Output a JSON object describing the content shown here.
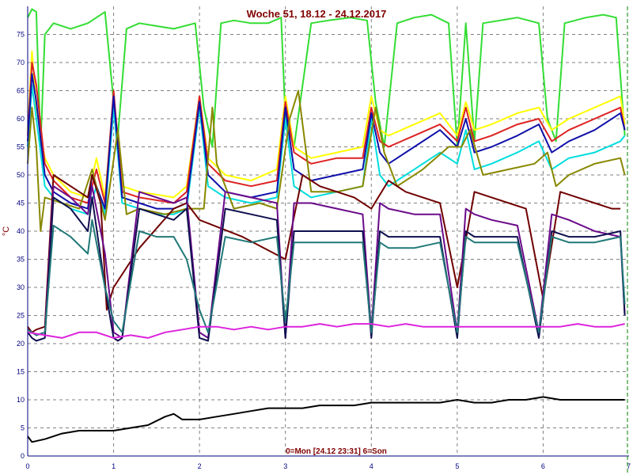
{
  "chart_data": {
    "type": "line",
    "title": "Woche 51, 18.12 - 24.12.2017",
    "footer": "0=Mon [24.12 23:31] 6=Son",
    "ylabel": "°C",
    "xlabel": "",
    "xlim": [
      0,
      7
    ],
    "ylim": [
      0,
      80
    ],
    "grid": true,
    "xticks": [
      0,
      1,
      2,
      3,
      4,
      5,
      6,
      7
    ],
    "yticks": [
      0,
      5,
      10,
      15,
      20,
      25,
      30,
      35,
      40,
      45,
      50,
      55,
      60,
      65,
      70,
      75
    ],
    "colors": {
      "background": "#ffffff",
      "grid": "#808080",
      "axis": "#000080",
      "title": "#800000"
    },
    "series": [
      {
        "color": "#33dd33",
        "x": [
          0,
          0.05,
          0.1,
          0.15,
          0.2,
          0.3,
          0.5,
          0.7,
          0.9,
          1.0,
          1.05,
          1.15,
          1.3,
          1.5,
          1.7,
          1.95,
          2.05,
          2.15,
          2.25,
          2.4,
          2.6,
          2.8,
          2.95,
          3.0,
          3.1,
          3.3,
          3.5,
          3.75,
          3.95,
          4.05,
          4.15,
          4.3,
          4.5,
          4.7,
          4.9,
          5.0,
          5.1,
          5.2,
          5.3,
          5.5,
          5.7,
          5.95,
          6.05,
          6.15,
          6.25,
          6.5,
          6.7,
          6.85,
          6.95
        ],
        "y": [
          78,
          79.5,
          79,
          55,
          75,
          77,
          76,
          77,
          79,
          63,
          57,
          76,
          77,
          76.5,
          76,
          77,
          62,
          55,
          77,
          77.5,
          77,
          77,
          78,
          60,
          55,
          77,
          77.5,
          78,
          77.5,
          63,
          55,
          77,
          78,
          78.5,
          77,
          55,
          77,
          56,
          77,
          77.5,
          78,
          77,
          60,
          56,
          77,
          78,
          78.5,
          78,
          57
        ]
      },
      {
        "color": "#ffff00",
        "x": [
          0,
          0.05,
          0.1,
          0.2,
          0.3,
          0.5,
          0.7,
          0.8,
          0.9,
          1.0,
          1.1,
          1.3,
          1.5,
          1.7,
          1.85,
          2.0,
          2.1,
          2.3,
          2.6,
          2.9,
          3.0,
          3.1,
          3.3,
          3.6,
          3.9,
          4.0,
          4.1,
          4.2,
          4.5,
          4.8,
          5.0,
          5.1,
          5.2,
          5.4,
          5.7,
          5.95,
          6.1,
          6.3,
          6.6,
          6.9,
          6.95
        ],
        "y": [
          58,
          72,
          62,
          53,
          50,
          47,
          46,
          53,
          46,
          64,
          48,
          47,
          46.5,
          46,
          48,
          64,
          53,
          50,
          49,
          51,
          64,
          55,
          53,
          54,
          55,
          64,
          58,
          57,
          59,
          61,
          57,
          63,
          58,
          59,
          61,
          62,
          58,
          60,
          62,
          64,
          59
        ]
      },
      {
        "color": "#dd2222",
        "x": [
          0,
          0.05,
          0.1,
          0.2,
          0.3,
          0.5,
          0.7,
          0.8,
          0.9,
          1.0,
          1.1,
          1.3,
          1.5,
          1.7,
          1.85,
          2.0,
          2.1,
          2.3,
          2.6,
          2.9,
          3.0,
          3.1,
          3.3,
          3.6,
          3.9,
          4.0,
          4.1,
          4.2,
          4.5,
          4.8,
          5.0,
          5.1,
          5.2,
          5.4,
          5.7,
          5.95,
          6.1,
          6.3,
          6.6,
          6.9,
          6.95
        ],
        "y": [
          57,
          70,
          66,
          52,
          49,
          46,
          45,
          51,
          45,
          65,
          47,
          46,
          45.5,
          45,
          47,
          64,
          52,
          49,
          48,
          49,
          63,
          54,
          52,
          53,
          53,
          62,
          56,
          55,
          57,
          59,
          56,
          62,
          56,
          57,
          59,
          60,
          56,
          58,
          60,
          62,
          58
        ]
      },
      {
        "color": "#00dddd",
        "x": [
          0,
          0.05,
          0.1,
          0.2,
          0.3,
          0.5,
          0.7,
          0.8,
          0.9,
          1.0,
          1.1,
          1.3,
          1.5,
          1.7,
          1.85,
          2.0,
          2.1,
          2.3,
          2.6,
          2.9,
          3.0,
          3.1,
          3.3,
          3.6,
          3.9,
          4.0,
          4.1,
          4.2,
          4.5,
          4.8,
          5.0,
          5.1,
          5.2,
          5.4,
          5.7,
          5.95,
          6.1,
          6.3,
          6.6,
          6.9,
          6.95
        ],
        "y": [
          55,
          66,
          60,
          48,
          46,
          44,
          43,
          48,
          43,
          62,
          45,
          44,
          43,
          43,
          44,
          62,
          48,
          46,
          45,
          46,
          60,
          48,
          46,
          47,
          48,
          60,
          50,
          48,
          51,
          54,
          52,
          58,
          51,
          52,
          54,
          56,
          51,
          53,
          54,
          56,
          57
        ]
      },
      {
        "color": "#1010aa",
        "x": [
          0,
          0.05,
          0.1,
          0.2,
          0.3,
          0.5,
          0.7,
          0.75,
          0.9,
          1.0,
          1.1,
          1.3,
          1.5,
          1.7,
          1.85,
          2.0,
          2.1,
          2.3,
          2.6,
          2.9,
          3.0,
          3.1,
          3.3,
          3.6,
          3.9,
          4.0,
          4.1,
          4.2,
          4.5,
          4.8,
          5.0,
          5.1,
          5.2,
          5.4,
          5.7,
          5.95,
          6.1,
          6.3,
          6.6,
          6.9,
          6.95
        ],
        "y": [
          56,
          68,
          63,
          50,
          47,
          45,
          44,
          50,
          44,
          64,
          46,
          45,
          44,
          44,
          45,
          63,
          50,
          47,
          46,
          47,
          62,
          51,
          49,
          50,
          51,
          61,
          54,
          52,
          55,
          58,
          55,
          60,
          54,
          55,
          57,
          59,
          54,
          56,
          58,
          61,
          58
        ]
      },
      {
        "color": "#888800",
        "x": [
          0,
          0.05,
          0.1,
          0.15,
          0.2,
          0.4,
          0.6,
          0.75,
          0.9,
          1.05,
          1.15,
          1.3,
          1.6,
          1.85,
          2.05,
          2.15,
          2.2,
          2.4,
          2.7,
          2.9,
          3.05,
          3.15,
          3.3,
          3.6,
          3.9,
          4.05,
          4.15,
          4.3,
          4.6,
          4.9,
          5.05,
          5.15,
          5.3,
          5.6,
          5.9,
          6.05,
          6.15,
          6.3,
          6.6,
          6.9,
          6.95
        ],
        "y": [
          52,
          62,
          55,
          40,
          46,
          45,
          44,
          51,
          42,
          58,
          43,
          44,
          43,
          44,
          44,
          62,
          52,
          44,
          45,
          44,
          60,
          65,
          47,
          47,
          48,
          62,
          54,
          48,
          51,
          55,
          55,
          58,
          50,
          51,
          52,
          54,
          48,
          50,
          52,
          53,
          50
        ]
      },
      {
        "color": "#700000",
        "x": [
          0,
          0.05,
          0.1,
          0.2,
          0.3,
          0.5,
          0.7,
          0.75,
          0.85,
          0.92,
          1.0,
          1.3,
          1.7,
          1.85,
          2.0,
          2.5,
          3.0,
          3.2,
          3.4,
          3.6,
          3.8,
          4.0,
          4.2,
          4.4,
          4.6,
          4.8,
          5.0,
          5.2,
          5.4,
          5.6,
          5.8,
          6.0,
          6.2,
          6.4,
          6.6,
          6.8,
          6.9
        ],
        "y": [
          23,
          22,
          22.5,
          23,
          50,
          48,
          46,
          50,
          45,
          26,
          30,
          37,
          44,
          45,
          42,
          39,
          35,
          50,
          48,
          47,
          46,
          44,
          49,
          47,
          46,
          45,
          30,
          47,
          46,
          45,
          44,
          28,
          47,
          46,
          45,
          44,
          44
        ]
      },
      {
        "color": "#6a0a8a",
        "x": [
          0,
          0.05,
          0.1,
          0.2,
          0.3,
          0.5,
          0.7,
          0.75,
          0.9,
          1.0,
          1.1,
          1.3,
          1.5,
          1.7,
          1.85,
          2.0,
          2.1,
          2.3,
          2.6,
          2.9,
          3.0,
          3.1,
          3.3,
          3.6,
          3.9,
          4.0,
          4.1,
          4.2,
          4.5,
          4.8,
          5.0,
          5.1,
          5.2,
          5.4,
          5.7,
          5.95,
          6.1,
          6.3,
          6.6,
          6.9,
          6.95
        ],
        "y": [
          22.5,
          22,
          21.5,
          22,
          48,
          46,
          43,
          48,
          36,
          22,
          21,
          47,
          46,
          45,
          46,
          22,
          21,
          47,
          46,
          45,
          21,
          45,
          45,
          44,
          43,
          22,
          45,
          44,
          43,
          43,
          22,
          44,
          43,
          42,
          41,
          22,
          43,
          42,
          40,
          39,
          25
        ]
      },
      {
        "color": "#101050",
        "x": [
          0,
          0.05,
          0.1,
          0.2,
          0.3,
          0.5,
          0.7,
          0.75,
          0.9,
          1.0,
          1.05,
          1.1,
          1.3,
          1.5,
          1.7,
          1.85,
          2.0,
          2.1,
          2.3,
          2.6,
          2.9,
          3.0,
          3.1,
          3.3,
          3.6,
          3.9,
          4.0,
          4.1,
          4.2,
          4.5,
          4.8,
          5.0,
          5.1,
          5.2,
          5.4,
          5.7,
          5.95,
          6.1,
          6.3,
          6.6,
          6.9,
          6.95
        ],
        "y": [
          22,
          21,
          20.5,
          21,
          46,
          44,
          40,
          46,
          30,
          21,
          20.5,
          21,
          44,
          43,
          42,
          44,
          21,
          20.5,
          44,
          43,
          42,
          21,
          40,
          40,
          40,
          40,
          21,
          40,
          39,
          39,
          39,
          21,
          40,
          39,
          39,
          39,
          21,
          40,
          39,
          39,
          40,
          25
        ]
      },
      {
        "color": "#207878",
        "x": [
          0,
          0.05,
          0.1,
          0.2,
          0.3,
          0.5,
          0.7,
          0.75,
          0.9,
          1.0,
          1.1,
          1.3,
          1.5,
          1.7,
          1.85,
          2.0,
          2.1,
          2.3,
          2.6,
          2.9,
          3.0,
          3.1,
          3.3,
          3.6,
          3.9,
          4.0,
          4.1,
          4.2,
          4.5,
          4.8,
          5.0,
          5.1,
          5.2,
          5.4,
          5.7,
          5.95,
          6.1,
          6.3,
          6.6,
          6.9,
          6.95
        ],
        "y": [
          22.5,
          22,
          21.5,
          22,
          41,
          39,
          36,
          42,
          30,
          24,
          22,
          40,
          39,
          39,
          35,
          26,
          22,
          39,
          38,
          39,
          24,
          38,
          38,
          38,
          38,
          22,
          38,
          37,
          37,
          38,
          22,
          39,
          38,
          38,
          38,
          22,
          39,
          38,
          38,
          39,
          27
        ]
      },
      {
        "color": "#dd22dd",
        "x": [
          0,
          0.2,
          0.4,
          0.6,
          0.8,
          1.0,
          1.2,
          1.4,
          1.6,
          1.8,
          2.0,
          2.2,
          2.4,
          2.6,
          2.8,
          3.0,
          3.2,
          3.4,
          3.6,
          3.8,
          4.0,
          4.2,
          4.4,
          4.6,
          4.8,
          5.0,
          5.2,
          5.4,
          5.6,
          5.8,
          6.0,
          6.2,
          6.4,
          6.6,
          6.8,
          6.95
        ],
        "y": [
          22,
          21.5,
          21,
          22,
          22,
          21,
          21.5,
          21,
          22,
          22.5,
          23,
          23,
          22.5,
          23,
          22.5,
          23,
          23,
          23.5,
          23,
          23.5,
          23.5,
          23,
          23.5,
          23,
          23,
          23,
          23,
          23,
          23,
          23,
          23,
          23,
          23.5,
          23,
          23,
          23.5
        ]
      },
      {
        "color": "#000000",
        "x": [
          0,
          0.05,
          0.2,
          0.4,
          0.6,
          0.8,
          1.0,
          1.2,
          1.4,
          1.6,
          1.7,
          1.8,
          2.0,
          2.2,
          2.4,
          2.6,
          2.8,
          3.0,
          3.2,
          3.4,
          3.6,
          3.8,
          4.0,
          4.2,
          4.4,
          4.6,
          4.8,
          5.0,
          5.2,
          5.4,
          5.6,
          5.8,
          6.0,
          6.2,
          6.4,
          6.6,
          6.8,
          6.95
        ],
        "y": [
          3.5,
          2.5,
          3,
          4,
          4.5,
          4.5,
          4.5,
          5,
          5.5,
          7,
          7.5,
          6.5,
          6.5,
          7,
          7.5,
          8,
          8.5,
          8.5,
          8.5,
          9,
          9,
          9,
          9.5,
          9.5,
          9.5,
          9.5,
          9.5,
          10,
          9.5,
          9.5,
          10,
          10,
          10.5,
          10,
          10,
          10,
          10,
          10
        ]
      }
    ]
  }
}
